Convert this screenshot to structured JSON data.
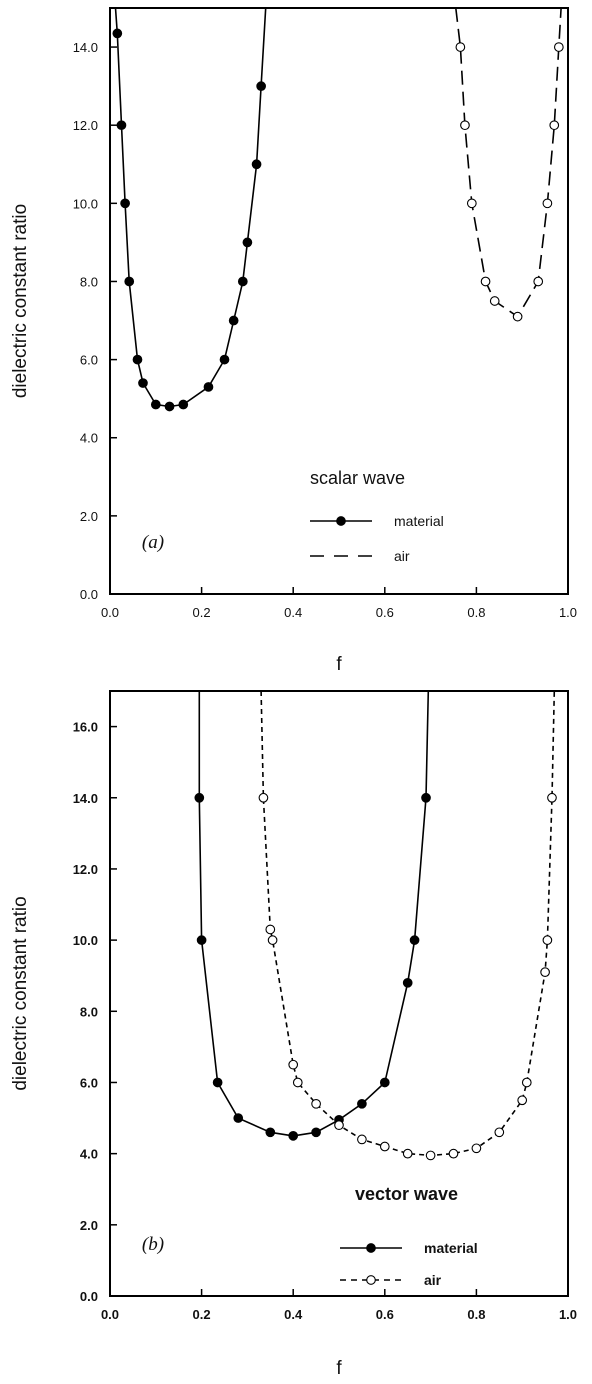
{
  "chart_data": [
    {
      "type": "line",
      "panel_label": "(a)",
      "title": "scalar wave",
      "xlabel": "f",
      "ylabel": "dielectric constant ratio",
      "xlim": [
        0,
        1
      ],
      "ylim": [
        0,
        15
      ],
      "xticks": [
        "0.0",
        "0.2",
        "0.4",
        "0.6",
        "0.8",
        "1.0"
      ],
      "yticks": [
        "0.0",
        "2.0",
        "4.0",
        "6.0",
        "8.0",
        "10.0",
        "12.0",
        "14.0"
      ],
      "grid": false,
      "legend_position": "lower-right",
      "series": [
        {
          "name": "material",
          "line_style": "solid",
          "marker": "filled-circle",
          "color": "#000000",
          "points": [
            [
              0.012,
              15.0
            ],
            [
              0.016,
              14.35
            ],
            [
              0.025,
              12.0
            ],
            [
              0.033,
              10.0
            ],
            [
              0.042,
              8.0
            ],
            [
              0.06,
              6.0
            ],
            [
              0.072,
              5.4
            ],
            [
              0.1,
              4.85
            ],
            [
              0.13,
              4.8
            ],
            [
              0.16,
              4.85
            ],
            [
              0.215,
              5.3
            ],
            [
              0.25,
              6.0
            ],
            [
              0.27,
              7.0
            ],
            [
              0.29,
              8.0
            ],
            [
              0.3,
              9.0
            ],
            [
              0.32,
              11.0
            ],
            [
              0.33,
              13.0
            ],
            [
              0.34,
              15.0
            ]
          ]
        },
        {
          "name": "air",
          "line_style": "dashed",
          "marker": "open-circle",
          "color": "#000000",
          "points": [
            [
              0.755,
              15.0
            ],
            [
              0.765,
              14.0
            ],
            [
              0.775,
              12.0
            ],
            [
              0.79,
              10.0
            ],
            [
              0.82,
              8.0
            ],
            [
              0.84,
              7.5
            ],
            [
              0.89,
              7.1
            ],
            [
              0.935,
              8.0
            ],
            [
              0.955,
              10.0
            ],
            [
              0.97,
              12.0
            ],
            [
              0.98,
              14.0
            ],
            [
              0.985,
              15.0
            ]
          ]
        }
      ]
    },
    {
      "type": "line",
      "panel_label": "(b)",
      "title": "vector wave",
      "xlabel": "f",
      "ylabel": "dielectric constant ratio",
      "xlim": [
        0,
        1
      ],
      "ylim": [
        0,
        17
      ],
      "xticks": [
        "0.0",
        "0.2",
        "0.4",
        "0.6",
        "0.8",
        "1.0"
      ],
      "yticks": [
        "0.0",
        "2.0",
        "4.0",
        "6.0",
        "8.0",
        "10.0",
        "12.0",
        "14.0",
        "16.0"
      ],
      "grid": false,
      "legend_position": "lower-right",
      "series": [
        {
          "name": "material",
          "line_style": "solid",
          "marker": "filled-circle",
          "color": "#000000",
          "points": [
            [
              0.195,
              17.0
            ],
            [
              0.195,
              14.0
            ],
            [
              0.2,
              10.0
            ],
            [
              0.235,
              6.0
            ],
            [
              0.28,
              5.0
            ],
            [
              0.35,
              4.6
            ],
            [
              0.4,
              4.5
            ],
            [
              0.45,
              4.6
            ],
            [
              0.5,
              4.95
            ],
            [
              0.55,
              5.4
            ],
            [
              0.6,
              6.0
            ],
            [
              0.65,
              8.8
            ],
            [
              0.665,
              10.0
            ],
            [
              0.69,
              14.0
            ],
            [
              0.695,
              17.0
            ]
          ]
        },
        {
          "name": "air",
          "line_style": "dashed",
          "marker": "open-circle",
          "color": "#000000",
          "points": [
            [
              0.33,
              17.0
            ],
            [
              0.335,
              14.0
            ],
            [
              0.35,
              10.3
            ],
            [
              0.355,
              10.0
            ],
            [
              0.4,
              6.5
            ],
            [
              0.41,
              6.0
            ],
            [
              0.45,
              5.4
            ],
            [
              0.5,
              4.8
            ],
            [
              0.55,
              4.4
            ],
            [
              0.6,
              4.2
            ],
            [
              0.65,
              4.0
            ],
            [
              0.7,
              3.95
            ],
            [
              0.75,
              4.0
            ],
            [
              0.8,
              4.15
            ],
            [
              0.85,
              4.6
            ],
            [
              0.9,
              5.5
            ],
            [
              0.91,
              6.0
            ],
            [
              0.95,
              9.1
            ],
            [
              0.955,
              10.0
            ],
            [
              0.965,
              14.0
            ],
            [
              0.97,
              17.0
            ]
          ]
        }
      ]
    }
  ]
}
